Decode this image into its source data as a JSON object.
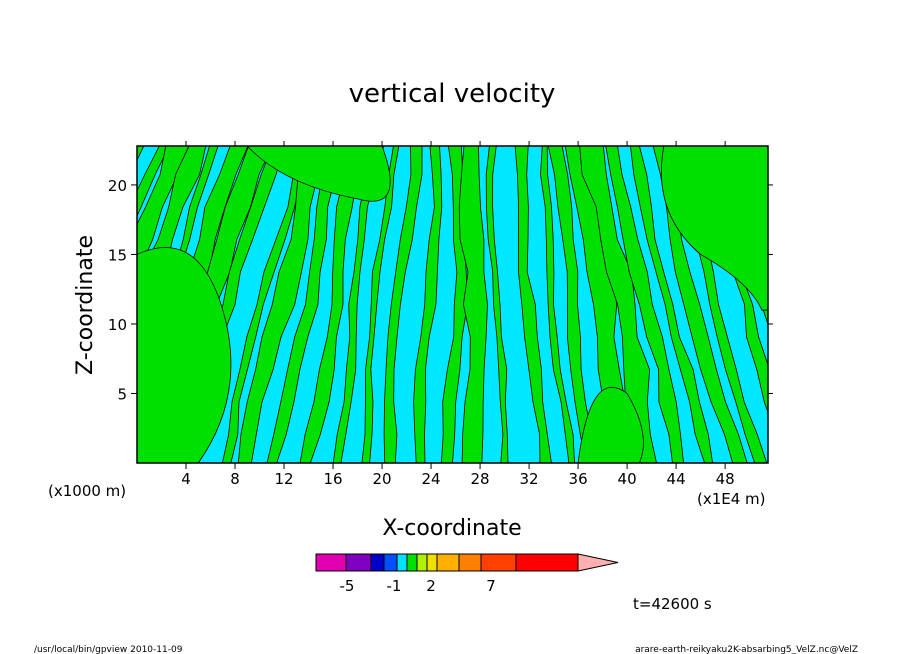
{
  "chart_data": {
    "type": "heatmap",
    "title": "vertical velocity",
    "xlabel": "X-coordinate",
    "ylabel": "Z-coordinate",
    "x_unit": "(x1E4 m)",
    "y_unit": "(x1000 m)",
    "xlim": [
      0,
      51.5
    ],
    "ylim": [
      0,
      22.8
    ],
    "xticks": [
      "4",
      "8",
      "12",
      "16",
      "20",
      "24",
      "28",
      "32",
      "36",
      "40",
      "44",
      "48"
    ],
    "yticks": [
      "5",
      "10",
      "15",
      "20"
    ],
    "time_label": "t=42600 s",
    "colorbar": {
      "colors": [
        "#e000b0",
        "#7f00c0",
        "#0000c8",
        "#0050ff",
        "#00e0ff",
        "#00e000",
        "#b0f000",
        "#f0e000",
        "#ffb000",
        "#ff8000",
        "#ff4000",
        "#ff0000",
        "#ff8080",
        "#ffb0b0"
      ],
      "labels": [
        "-5",
        "-1",
        "2",
        "7"
      ],
      "dominant_bands": [
        "#00e8ff",
        "#00e000"
      ]
    }
  },
  "footer": {
    "left": "/usr/local/bin/gpview   2010-11-09",
    "right": "arare-earth-reikyaku2K-absarbing5_VelZ.nc@VelZ"
  }
}
